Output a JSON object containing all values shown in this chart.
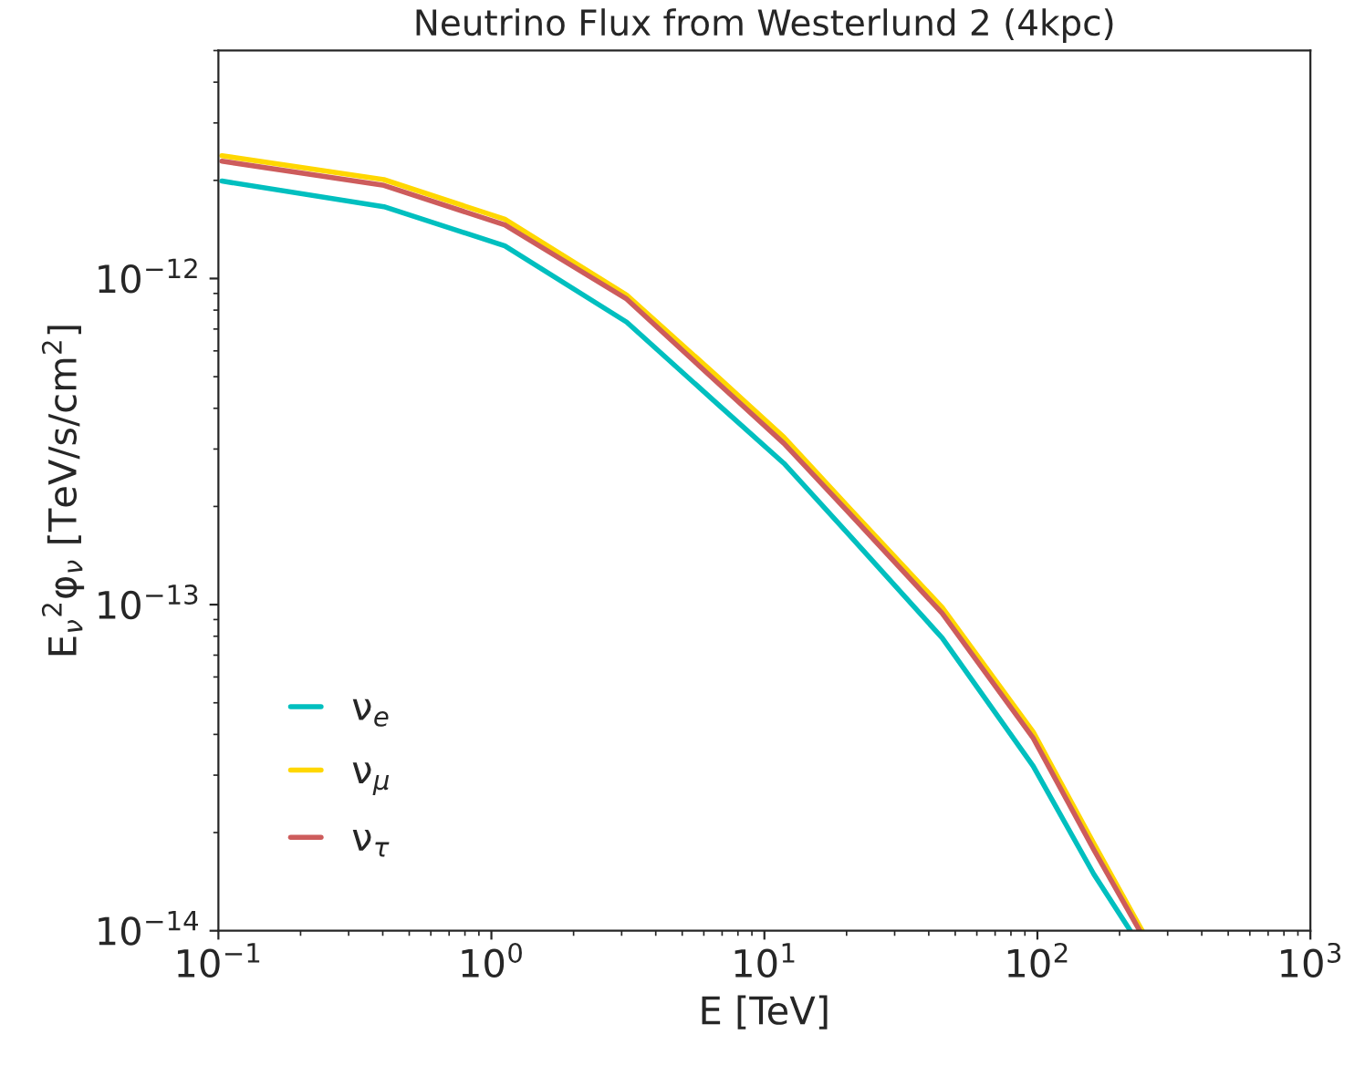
{
  "chart_data": {
    "type": "line",
    "title": "Neutrino Flux from Westerlund 2 (4kpc)",
    "xlabel": "E [TeV]",
    "ylabel": "E$_{ν}$$^{2}$φ$_{ν}$ [TeV/s/cm$^{2}$]",
    "series": [
      {
        "name": "ν$_{e}$",
        "color": "#00bfbf",
        "x": [
          0.103,
          0.404,
          1.12,
          3.13,
          6.74,
          11.8,
          20.8,
          44.8,
          96.5,
          161,
          219
        ],
        "values": [
          1.99e-12,
          1.66e-12,
          1.26e-12,
          7.35e-13,
          4.12e-13,
          2.71e-13,
          1.61e-13,
          7.9e-14,
          3.2e-14,
          1.49e-14,
          1e-14
        ]
      },
      {
        "name": "ν$_{μ}$",
        "color": "#ffd700",
        "x": [
          0.103,
          0.404,
          1.12,
          3.13,
          6.74,
          11.8,
          20.8,
          44.8,
          96.5,
          161,
          242
        ],
        "values": [
          2.38e-12,
          2.01e-12,
          1.52e-12,
          8.9e-13,
          5e-13,
          3.26e-13,
          1.95e-13,
          9.8e-14,
          4.07e-14,
          1.85e-14,
          1e-14
        ]
      },
      {
        "name": "ν$_{τ}$",
        "color": "#cd5c5c",
        "x": [
          0.103,
          0.404,
          1.12,
          3.13,
          6.74,
          11.8,
          20.8,
          44.8,
          96.5,
          161,
          237
        ],
        "values": [
          2.29e-12,
          1.93e-12,
          1.46e-12,
          8.65e-13,
          4.79e-13,
          3.12e-13,
          1.88e-13,
          9.4e-14,
          3.9e-14,
          1.77e-14,
          1e-14
        ]
      }
    ],
    "log": "xy",
    "xlim": [
      0.1,
      1000
    ],
    "ylim": [
      1e-14,
      5e-12
    ],
    "xticks": [
      {
        "value": 0.1,
        "label": "10$^{−1}$"
      },
      {
        "value": 1,
        "label": "10$^{0}$"
      },
      {
        "value": 10,
        "label": "10$^{1}$"
      },
      {
        "value": 100,
        "label": "10$^{2}$"
      },
      {
        "value": 1000,
        "label": "10$^{3}$"
      }
    ],
    "yticks": [
      {
        "value": 1e-14,
        "label": "10$^{−14}$"
      },
      {
        "value": 1e-13,
        "label": "10$^{−13}$"
      },
      {
        "value": 1e-12,
        "label": "10$^{−12}$"
      }
    ],
    "legend": "lower left",
    "grid": false,
    "line_style": "solid",
    "marker": "none"
  }
}
